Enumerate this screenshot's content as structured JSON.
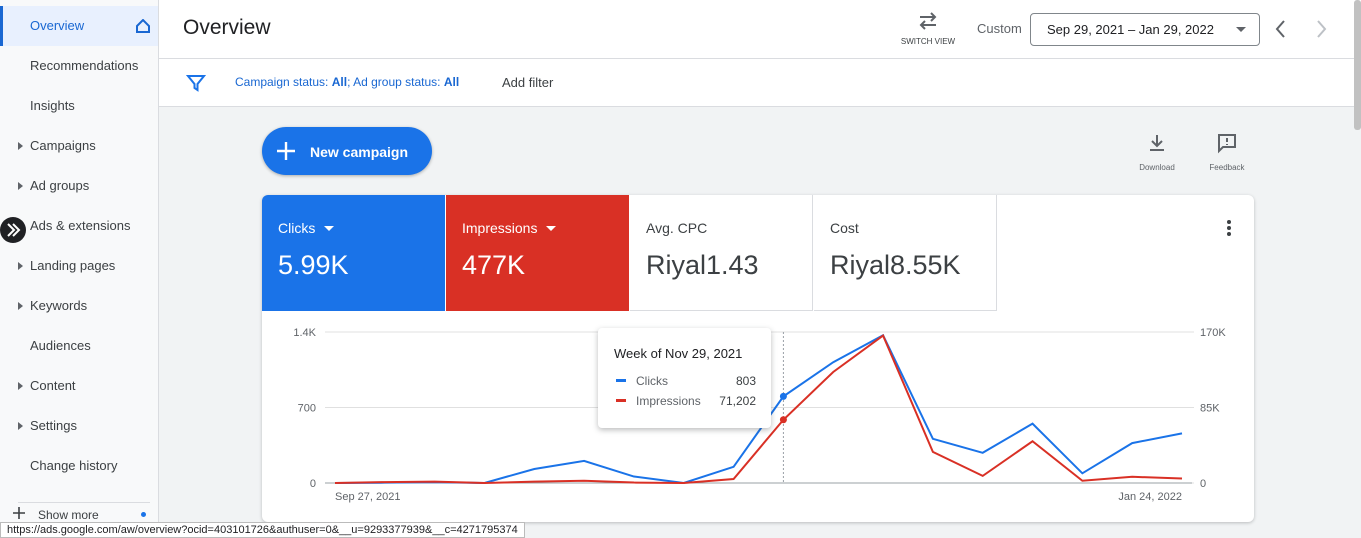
{
  "sidebar": {
    "items": [
      {
        "label": "Overview",
        "active": true
      },
      {
        "label": "Recommendations"
      },
      {
        "label": "Insights"
      },
      {
        "label": "Campaigns",
        "expandable": true
      },
      {
        "label": "Ad groups",
        "expandable": true
      },
      {
        "label": "Ads & extensions",
        "expandable": true
      },
      {
        "label": "Landing pages",
        "expandable": true
      },
      {
        "label": "Keywords",
        "expandable": true
      },
      {
        "label": "Audiences"
      },
      {
        "label": "Content",
        "expandable": true
      },
      {
        "label": "Settings",
        "expandable": true
      },
      {
        "label": "Change history"
      }
    ],
    "show_more": "Show more"
  },
  "header": {
    "title": "Overview",
    "switch_view": "SWITCH VIEW",
    "range_type": "Custom",
    "date_range": "Sep 29, 2021 – Jan 29, 2022"
  },
  "filters": {
    "campaign_status_label": "Campaign status:",
    "campaign_status": "All",
    "ad_group_status_label": "; Ad group status:",
    "ad_group_status": "All",
    "add_filter": "Add filter"
  },
  "actions": {
    "new_campaign": "New campaign",
    "download": "Download",
    "feedback": "Feedback"
  },
  "metrics": [
    {
      "label": "Clicks",
      "value": "5.99K",
      "color": "#1a73e8"
    },
    {
      "label": "Impressions",
      "value": "477K",
      "color": "#d93025"
    },
    {
      "label": "Avg. CPC",
      "value": "Riyal1.43"
    },
    {
      "label": "Cost",
      "value": "Riyal8.55K"
    }
  ],
  "chart_data": {
    "type": "line",
    "x": [
      "Sep 27, 2021",
      null,
      null,
      null,
      null,
      null,
      null,
      null,
      null,
      null,
      null,
      null,
      null,
      null,
      null,
      null,
      null,
      "Jan 24, 2022"
    ],
    "series": [
      {
        "name": "Clicks",
        "color": "#1a73e8",
        "values": [
          0,
          3,
          8,
          0,
          130,
          205,
          60,
          0,
          150,
          803,
          1120,
          1370,
          410,
          280,
          550,
          90,
          370,
          460
        ]
      },
      {
        "name": "Impressions",
        "color": "#d93025",
        "axis": "y2",
        "values": [
          0,
          1000,
          1500,
          0,
          1500,
          2500,
          500,
          0,
          4500,
          71202,
          125000,
          166000,
          35000,
          8000,
          47000,
          2500,
          7000,
          5000
        ]
      }
    ],
    "ylim": [
      0,
      1400
    ],
    "yticks": [
      0,
      700,
      {
        "value": 1400,
        "label": "1.4K"
      }
    ],
    "y2lim": [
      0,
      170000
    ],
    "y2ticks": [
      0,
      {
        "value": 85000,
        "label": "85K"
      },
      {
        "value": 170000,
        "label": "170K"
      }
    ],
    "grid": true,
    "tooltip": {
      "title": "Week of Nov 29, 2021",
      "clicks": 803,
      "impressions": "71,202"
    }
  },
  "status_bar": "https://ads.google.com/aw/overview?ocid=403101726&authuser=0&__u=9293377939&__c=4271795374"
}
